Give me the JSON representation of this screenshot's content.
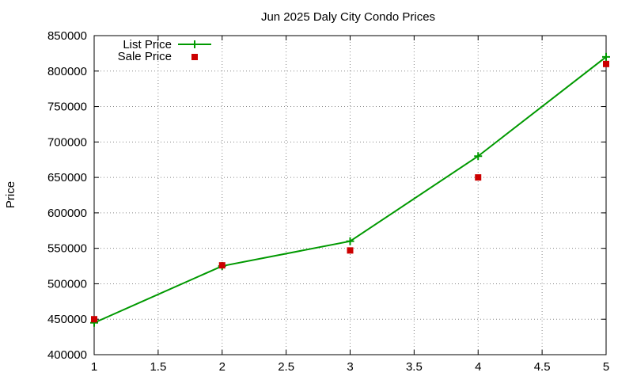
{
  "chart_data": {
    "type": "line",
    "title": "Jun 2025 Daly City Condo Prices",
    "xlabel": "",
    "ylabel": "Price",
    "xlim": [
      1,
      5
    ],
    "ylim": [
      400000,
      850000
    ],
    "xticks": [
      1,
      1.5,
      2,
      2.5,
      3,
      3.5,
      4,
      4.5,
      5
    ],
    "yticks": [
      400000,
      450000,
      500000,
      550000,
      600000,
      650000,
      700000,
      750000,
      800000,
      850000
    ],
    "grid": true,
    "legend_position": "top-left",
    "series": [
      {
        "name": "List Price",
        "style": "line-with-plus-markers",
        "color": "#009900",
        "x": [
          1,
          2,
          3,
          4,
          5
        ],
        "values": [
          445000,
          525000,
          560000,
          680000,
          820000
        ]
      },
      {
        "name": "Sale Price",
        "style": "square-markers",
        "color": "#cc0000",
        "x": [
          1,
          2,
          3,
          4,
          5
        ],
        "values": [
          450000,
          526000,
          547000,
          650000,
          810000
        ]
      }
    ]
  }
}
